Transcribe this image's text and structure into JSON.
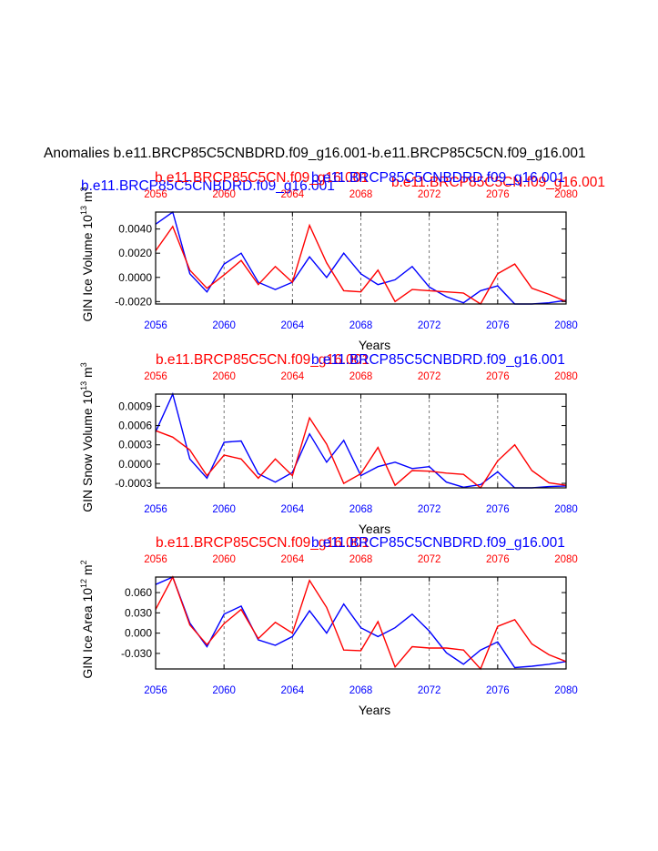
{
  "figure": {
    "main_title": "Anomalies b.e11.BRCP85C5CNBDRD.f09_g16.001-b.e11.BRCP85C5CN.f09_g16.001",
    "top_label_blue": "b.e11.BRCP85C5CNBDRD.f09_g16.001",
    "top_label_red_left": "b.e11.BRCP85C5CN.f09_g16.001",
    "top_label_red_right": "b.e11.BRCP85C5CN.f09_g16.001",
    "colors": {
      "blue": "#0000ff",
      "red": "#ff0000",
      "axis": "#000000",
      "grid": "#555555"
    }
  },
  "chart_data": [
    {
      "type": "line",
      "name": "ice-volume",
      "ylabel": "GIN Ice Volume 10",
      "ylabel_exp": "13",
      "ylabel_unit": " m",
      "ylabel_unit_exp": "3",
      "xlabel": "Years",
      "title_red": "b.e11.BRCP85C5CN.f09_g16.001",
      "title_blue": "b.e11.BRCP85C5CNBDRD.f09_g16.001",
      "show_titles": false,
      "xlim": [
        2056,
        2080
      ],
      "ylim": [
        -0.0022,
        0.0054
      ],
      "yticks": [
        0.004,
        0.002,
        0.0,
        -0.002
      ],
      "ytick_labels": [
        "0.0040",
        "0.0020",
        "0.0000",
        "-0.0020"
      ],
      "xticks": [
        2056,
        2060,
        2064,
        2068,
        2072,
        2076,
        2080
      ],
      "xtick_labels": [
        "2056",
        "2060",
        "2064",
        "2068",
        "2072",
        "2076",
        "2080"
      ],
      "x": [
        2056,
        2057,
        2058,
        2059,
        2060,
        2061,
        2062,
        2063,
        2064,
        2065,
        2066,
        2067,
        2068,
        2069,
        2070,
        2071,
        2072,
        2073,
        2074,
        2075,
        2076,
        2077,
        2078,
        2079,
        2080
      ],
      "series": [
        {
          "name": "b.e11.BRCP85C5CNBDRD.f09_g16.001",
          "color": "blue",
          "values": [
            0.0044,
            0.0054,
            0.0003,
            -0.0012,
            0.0011,
            0.002,
            -0.0004,
            -0.001,
            -0.0004,
            0.0017,
            0.0,
            0.002,
            0.0003,
            -0.0006,
            -0.0002,
            0.0009,
            -0.0008,
            -0.0016,
            -0.0021,
            -0.0011,
            -0.0007,
            -0.0023,
            -0.0022,
            -0.0021,
            -0.0019
          ]
        },
        {
          "name": "b.e11.BRCP85C5CN.f09_g16.001",
          "color": "red",
          "values": [
            0.0022,
            0.0042,
            0.0006,
            -0.0009,
            0.0002,
            0.0014,
            -0.0006,
            0.0009,
            -0.0004,
            0.0043,
            0.0012,
            -0.0011,
            -0.0012,
            0.0006,
            -0.002,
            -0.001,
            -0.0011,
            -0.0012,
            -0.0013,
            -0.0024,
            0.0003,
            0.0011,
            -0.0009,
            -0.0014,
            -0.002
          ]
        }
      ]
    },
    {
      "type": "line",
      "name": "snow-volume",
      "ylabel": "GIN Snow Volume 10",
      "ylabel_exp": "13",
      "ylabel_unit": " m",
      "ylabel_unit_exp": "3",
      "xlabel": "Years",
      "title_red": "b.e11.BRCP85C5CN.f09_g16.001",
      "title_blue": "b.e11.BRCP85C5CNBDRD.f09_g16.001",
      "show_titles": true,
      "xlim": [
        2056,
        2080
      ],
      "ylim": [
        -0.00037,
        0.00109
      ],
      "yticks": [
        0.0009,
        0.0006,
        0.0003,
        0.0,
        -0.0003
      ],
      "ytick_labels": [
        "0.0009",
        "0.0006",
        "0.0003",
        "0.0000",
        "-0.0003"
      ],
      "xticks": [
        2056,
        2060,
        2064,
        2068,
        2072,
        2076,
        2080
      ],
      "xtick_labels": [
        "2056",
        "2060",
        "2064",
        "2068",
        "2072",
        "2076",
        "2080"
      ],
      "x": [
        2056,
        2057,
        2058,
        2059,
        2060,
        2061,
        2062,
        2063,
        2064,
        2065,
        2066,
        2067,
        2068,
        2069,
        2070,
        2071,
        2072,
        2073,
        2074,
        2075,
        2076,
        2077,
        2078,
        2079,
        2080
      ],
      "series": [
        {
          "name": "b.e11.BRCP85C5CNBDRD.f09_g16.001",
          "color": "blue",
          "values": [
            0.0005,
            0.00109,
            8e-05,
            -0.00022,
            0.00034,
            0.00036,
            -0.00015,
            -0.00028,
            -0.00013,
            0.00047,
            3e-05,
            0.00037,
            -0.00018,
            -4e-05,
            3e-05,
            -7e-05,
            -4e-05,
            -0.00028,
            -0.00036,
            -0.00032,
            -0.00012,
            -0.0004,
            -0.00038,
            -0.00035,
            -0.00034
          ]
        },
        {
          "name": "b.e11.BRCP85C5CN.f09_g16.001",
          "color": "red",
          "values": [
            0.00052,
            0.00042,
            0.00022,
            -0.00018,
            0.00014,
            8e-05,
            -0.00022,
            8e-05,
            -0.00018,
            0.00072,
            0.00031,
            -0.0003,
            -0.00015,
            0.00026,
            -0.00033,
            -0.0001,
            -0.00011,
            -0.00014,
            -0.00016,
            -0.00037,
            5e-05,
            0.0003,
            -0.0001,
            -0.00029,
            -0.00033
          ]
        }
      ]
    },
    {
      "type": "line",
      "name": "ice-area",
      "ylabel": "GIN Ice Area 10",
      "ylabel_exp": "12",
      "ylabel_unit": " m",
      "ylabel_unit_exp": "2",
      "xlabel": "Years",
      "title_red": "b.e11.BRCP85C5CN.f09_g16.001",
      "title_blue": "b.e11.BRCP85C5CNBDRD.f09_g16.001",
      "show_titles": true,
      "xlim": [
        2056,
        2080
      ],
      "ylim": [
        -0.053,
        0.083
      ],
      "yticks": [
        0.06,
        0.03,
        0.0,
        -0.03
      ],
      "ytick_labels": [
        "0.060",
        "0.030",
        "0.000",
        "-0.030"
      ],
      "xticks": [
        2056,
        2060,
        2064,
        2068,
        2072,
        2076,
        2080
      ],
      "xtick_labels": [
        "2056",
        "2060",
        "2064",
        "2068",
        "2072",
        "2076",
        "2080"
      ],
      "x": [
        2056,
        2057,
        2058,
        2059,
        2060,
        2061,
        2062,
        2063,
        2064,
        2065,
        2066,
        2067,
        2068,
        2069,
        2070,
        2071,
        2072,
        2073,
        2074,
        2075,
        2076,
        2077,
        2078,
        2079,
        2080
      ],
      "series": [
        {
          "name": "b.e11.BRCP85C5CNBDRD.f09_g16.001",
          "color": "blue",
          "values": [
            0.072,
            0.083,
            0.015,
            -0.02,
            0.028,
            0.04,
            -0.01,
            -0.018,
            -0.005,
            0.033,
            0.0,
            0.043,
            0.008,
            -0.005,
            0.008,
            0.028,
            0.003,
            -0.029,
            -0.046,
            -0.025,
            -0.013,
            -0.051,
            -0.049,
            -0.046,
            -0.042
          ]
        },
        {
          "name": "b.e11.BRCP85C5CN.f09_g16.001",
          "color": "red",
          "values": [
            0.035,
            0.083,
            0.012,
            -0.017,
            0.014,
            0.035,
            -0.008,
            0.016,
            0.0,
            0.078,
            0.038,
            -0.025,
            -0.026,
            0.017,
            -0.05,
            -0.02,
            -0.022,
            -0.022,
            -0.025,
            -0.057,
            0.01,
            0.02,
            -0.016,
            -0.032,
            -0.042
          ]
        }
      ]
    }
  ]
}
